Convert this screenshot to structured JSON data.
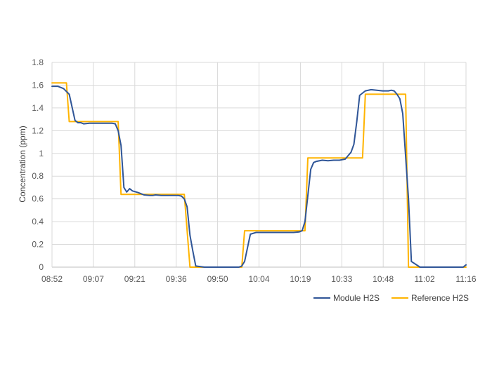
{
  "chart_data": {
    "type": "line",
    "title": "",
    "xlabel": "",
    "ylabel": "Concentration (ppm)",
    "ylim": [
      0,
      1.8
    ],
    "ytick_step": 0.2,
    "ytick_labels": [
      "0",
      "0.2",
      "0.4",
      "0.6",
      "0.8",
      "1",
      "1.2",
      "1.4",
      "1.6",
      "1.8"
    ],
    "xlim": [
      "08:52",
      "11:16"
    ],
    "xtick_labels": [
      "08:52",
      "09:07",
      "09:21",
      "09:36",
      "09:50",
      "10:04",
      "10:19",
      "10:33",
      "10:48",
      "11:02",
      "11:16"
    ],
    "grid": true,
    "legend_position": "bottom-right",
    "series": [
      {
        "name": "Module H2S",
        "color": "#2F5597",
        "x": [
          "08:52",
          "08:54",
          "08:56",
          "08:58",
          "09:00",
          "09:01",
          "09:02",
          "09:03",
          "09:05",
          "09:08",
          "09:12",
          "09:13",
          "09:14",
          "09:15",
          "09:16",
          "09:17",
          "09:18",
          "09:19",
          "09:20",
          "09:22",
          "09:24",
          "09:26",
          "09:27",
          "09:28",
          "09:30",
          "09:32",
          "09:34",
          "09:36",
          "09:37",
          "09:38",
          "09:39",
          "09:40",
          "09:41",
          "09:42",
          "09:45",
          "09:50",
          "09:54",
          "09:57",
          "09:58",
          "09:59",
          "10:00",
          "10:01",
          "10:03",
          "10:05",
          "10:08",
          "10:12",
          "10:16",
          "10:18",
          "10:19",
          "10:20",
          "10:21",
          "10:22",
          "10:23",
          "10:24",
          "10:26",
          "10:28",
          "10:30",
          "10:32",
          "10:34",
          "10:35",
          "10:36",
          "10:37",
          "10:38",
          "10:39",
          "10:41",
          "10:43",
          "10:45",
          "10:47",
          "10:48",
          "10:49",
          "10:50",
          "10:51",
          "10:52",
          "10:53",
          "10:54",
          "10:56",
          "10:57",
          "11:00",
          "11:04",
          "11:10",
          "11:15",
          "11:16"
        ],
        "y": [
          1.59,
          1.59,
          1.57,
          1.52,
          1.29,
          1.27,
          1.27,
          1.26,
          1.265,
          1.265,
          1.265,
          1.265,
          1.26,
          1.2,
          1.07,
          0.7,
          0.66,
          0.69,
          0.67,
          0.655,
          0.635,
          0.63,
          0.63,
          0.635,
          0.63,
          0.63,
          0.63,
          0.63,
          0.625,
          0.6,
          0.53,
          0.28,
          0.14,
          0.01,
          0,
          0,
          0,
          0,
          0.01,
          0.05,
          0.17,
          0.29,
          0.305,
          0.305,
          0.305,
          0.305,
          0.305,
          0.31,
          0.32,
          0.4,
          0.63,
          0.86,
          0.92,
          0.93,
          0.94,
          0.935,
          0.94,
          0.94,
          0.95,
          0.98,
          1.01,
          1.08,
          1.28,
          1.51,
          1.55,
          1.56,
          1.555,
          1.55,
          1.55,
          1.55,
          1.555,
          1.55,
          1.52,
          1.48,
          1.35,
          0.6,
          0.05,
          0,
          0,
          0,
          0,
          0.02
        ]
      },
      {
        "name": "Reference H2S",
        "color": "#FFB400",
        "x": [
          "08:52",
          "08:57",
          "08:58",
          "09:07",
          "09:15",
          "09:16",
          "09:37",
          "09:38",
          "09:40",
          "09:55",
          "09:58",
          "09:59",
          "10:10",
          "10:14",
          "10:15",
          "10:20",
          "10:21",
          "10:26",
          "10:35",
          "10:40",
          "10:41",
          "10:52",
          "10:55",
          "10:56",
          "11:00",
          "11:05",
          "11:16"
        ],
        "y": [
          1.62,
          1.62,
          1.28,
          1.28,
          1.28,
          0.64,
          0.64,
          0.64,
          0,
          0,
          0,
          0.32,
          0.32,
          0.32,
          0.32,
          0.32,
          0.96,
          0.96,
          0.96,
          0.96,
          1.52,
          1.52,
          1.52,
          0,
          0,
          0,
          0
        ]
      }
    ]
  }
}
